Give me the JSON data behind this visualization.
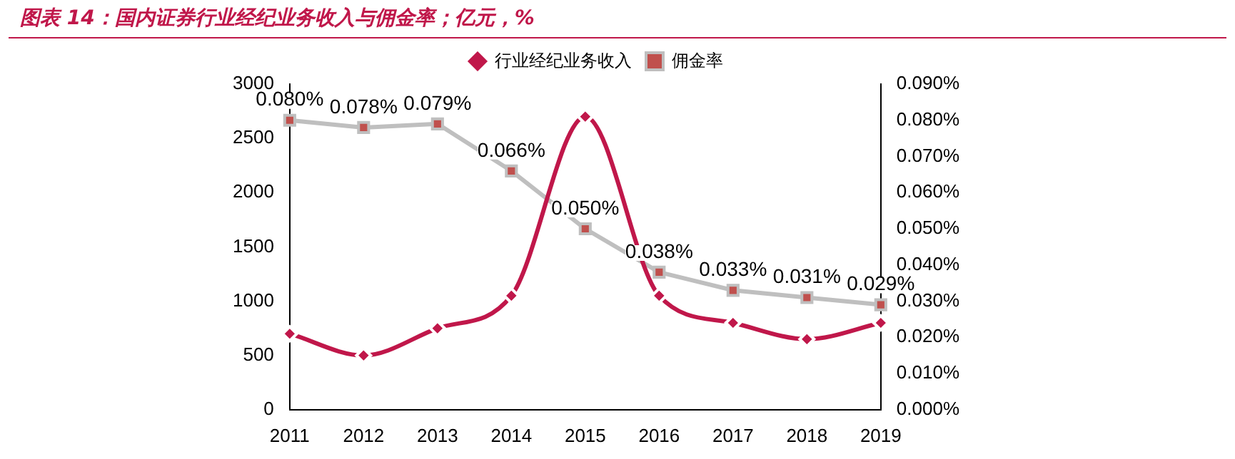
{
  "chart_data": {
    "type": "line",
    "title": "图表 14：国内证券行业经纪业务收入与佣金率；亿元，%",
    "categories": [
      "2011",
      "2012",
      "2013",
      "2014",
      "2015",
      "2016",
      "2017",
      "2018",
      "2019"
    ],
    "series": [
      {
        "name": "行业经纪业务收入",
        "color": "#c0174a",
        "marker": "diamond",
        "values": [
          700,
          500,
          750,
          1050,
          2700,
          1050,
          800,
          650,
          800
        ]
      },
      {
        "name": "佣金率",
        "color": "#bfbfbf",
        "marker": "square",
        "axis": "y2",
        "values": [
          0.08,
          0.078,
          0.079,
          0.066,
          0.05,
          0.038,
          0.033,
          0.031,
          0.029
        ],
        "value_labels": [
          "0.080%",
          "0.078%",
          "0.079%",
          "0.066%",
          "0.050%",
          "0.038%",
          "0.033%",
          "0.031%",
          "0.029%"
        ]
      }
    ],
    "ylim": [
      0,
      3000
    ],
    "yticks": [
      0,
      500,
      1000,
      1500,
      2000,
      2500,
      3000
    ],
    "y2lim": [
      0,
      0.09
    ],
    "y2ticks": [
      {
        "value": 0,
        "label": "0.000%"
      },
      {
        "value": 0.01,
        "label": "0.010%"
      },
      {
        "value": 0.02,
        "label": "0.020%"
      },
      {
        "value": 0.03,
        "label": "0.030%"
      },
      {
        "value": 0.04,
        "label": "0.040%"
      },
      {
        "value": 0.05,
        "label": "0.050%"
      },
      {
        "value": 0.06,
        "label": "0.060%"
      },
      {
        "value": 0.07,
        "label": "0.070%"
      },
      {
        "value": 0.08,
        "label": "0.080%"
      },
      {
        "value": 0.09,
        "label": "0.090%"
      }
    ],
    "grid": false,
    "legend": "top"
  }
}
